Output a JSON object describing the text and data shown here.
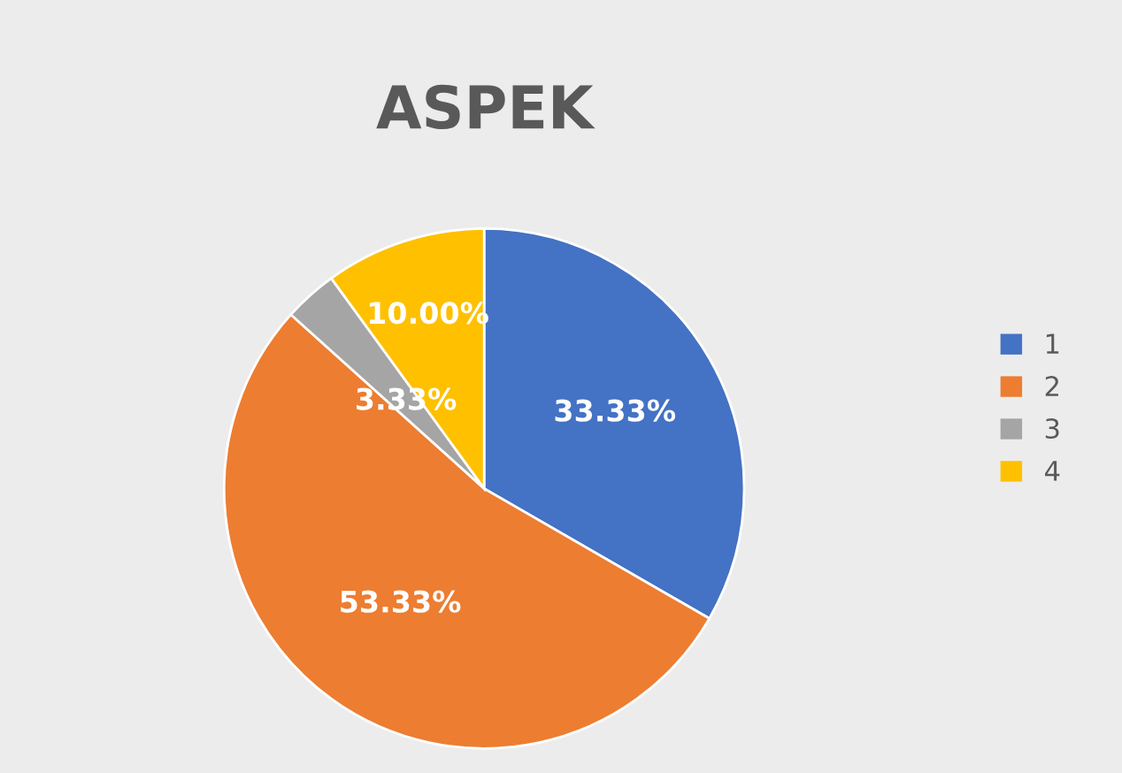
{
  "chart_data": {
    "type": "pie",
    "title": "ASPEK",
    "categories": [
      "1",
      "2",
      "3",
      "4"
    ],
    "values": [
      33.33,
      53.33,
      3.33,
      10.0
    ],
    "colors": [
      "#4472c4",
      "#ed7d31",
      "#a5a5a5",
      "#ffc000"
    ],
    "value_labels": [
      "33.33%",
      "53.33%",
      "3.33%",
      "10.00%"
    ],
    "legend": "right"
  }
}
